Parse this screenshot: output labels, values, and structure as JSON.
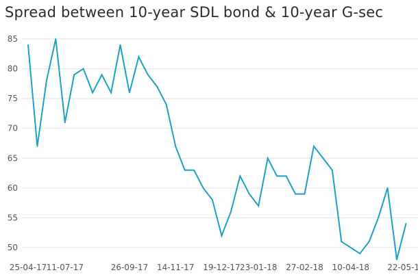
{
  "chart_data": {
    "type": "line",
    "title": "Spread between 10-year SDL bond & 10-year G-sec",
    "xlabel": "",
    "ylabel": "",
    "ylim": [
      48,
      86
    ],
    "yticks": [
      50,
      55,
      60,
      65,
      70,
      75,
      80,
      85
    ],
    "grid": true,
    "legend": "none",
    "line_color": "#1ba1c7",
    "x_tick_labels": [
      "25-04-17",
      "11-07-17",
      "26-09-17",
      "14-11-17",
      "19-12-17",
      "23-01-18",
      "27-02-18",
      "10-04-18",
      "22-05-18"
    ],
    "x_tick_indices": [
      0,
      4,
      11,
      16,
      21,
      25,
      30,
      35,
      41
    ],
    "series": [
      {
        "values": [
          84,
          67,
          78,
          85,
          71,
          79,
          80,
          76,
          79,
          76,
          84,
          76,
          82,
          79,
          77,
          74,
          67,
          63,
          63,
          60,
          58,
          52,
          56,
          62,
          59,
          57,
          65,
          62,
          62,
          59,
          59,
          67,
          65,
          63,
          51,
          null,
          49,
          51,
          55,
          60,
          48,
          54
        ]
      }
    ]
  }
}
